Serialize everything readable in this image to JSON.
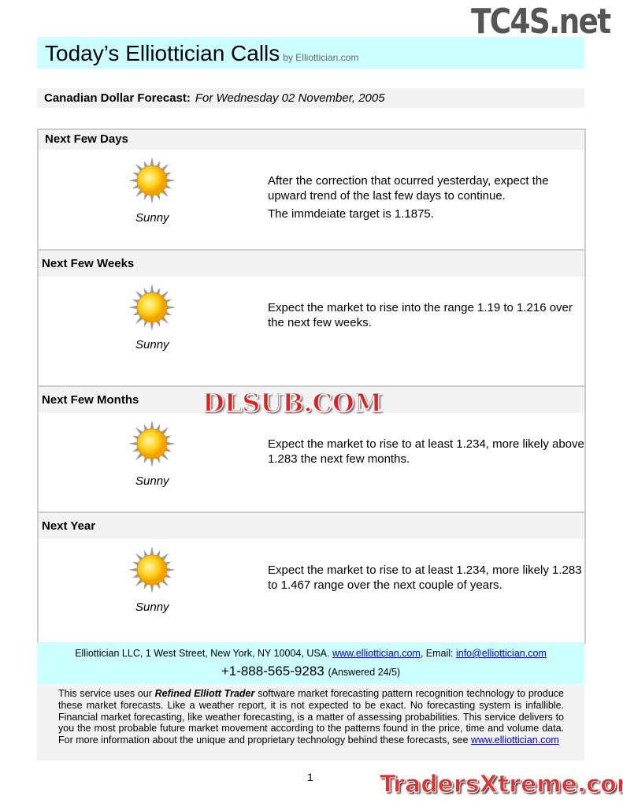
{
  "header": {
    "title": "Today’s Elliottician Calls",
    "byline": "by Elliottician.com"
  },
  "forecast": {
    "label": "Canadian Dollar Forecast:",
    "date": "For Wednesday 02 November, 2005"
  },
  "sections": [
    {
      "heading": "Next Few Days",
      "icon": "sun-icon",
      "condition": "Sunny",
      "paragraphs": [
        "After the correction that ocurred yesterday, expect the upward trend of the last few days to continue.",
        "The immdeiate target is 1.1875."
      ]
    },
    {
      "heading": "Next Few Weeks",
      "icon": "sun-icon",
      "condition": "Sunny",
      "paragraphs": [
        "Expect the market to rise into the range 1.19 to 1.216 over the next few weeks."
      ]
    },
    {
      "heading": "Next Few Months",
      "icon": "sun-icon",
      "condition": "Sunny",
      "paragraphs": [
        "Expect the market to rise to at least 1.234, more likely above 1.283 the next few months."
      ]
    },
    {
      "heading": "Next Year",
      "icon": "sun-icon",
      "condition": "Sunny",
      "paragraphs": [
        "Expect the market to rise to at least 1.234, more likely 1.283 to 1.467 range over the next couple of years."
      ]
    }
  ],
  "footer": {
    "address": "Elliottician LLC, 1 West Street, New York, NY 10004, USA. ",
    "website": "www.elliottician.com",
    "email_label": ", Email: ",
    "email": "info@elliottician.com",
    "phone": "+1-888-565-9283",
    "phone_note": "(Answered 24/5)"
  },
  "disclaimer": {
    "part1": "This service uses our ",
    "product": "Refined Elliott Trader",
    "part2": " software market forecasting pattern recognition technology to produce these market forecasts. Like a weather report, it is not expected to be exact. No forecasting system is infallible. Financial market forecasting, like weather forecasting, is a matter of assessing probabilities. This service delivers to you the most probable future market movement according to the patterns found in the price, time and volume data. For more information about the unique and proprietary technology behind these forecasts, see ",
    "link": "www.elliottician.com"
  },
  "page_number": "1",
  "watermarks": {
    "top": "TC4S.net",
    "middle": "DLSUB.COM",
    "bottom": "TradersXtreme.com"
  },
  "colors": {
    "title_bg": "#ccffff",
    "band_bg": "#f2f2f2",
    "link": "#0000cc"
  }
}
